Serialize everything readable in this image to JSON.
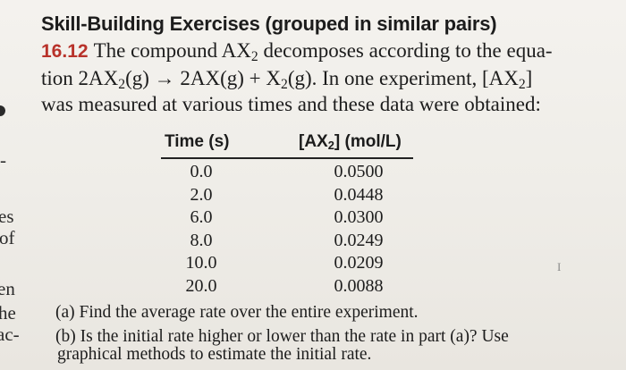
{
  "heading": "Skill-Building Exercises (grouped in similar pairs)",
  "problem": {
    "number": "16.12",
    "line1_a": "The compound AX",
    "line1_sub": "2",
    "line1_b": " decomposes according to the equa-",
    "line2_a": "tion 2AX",
    "line2_sub1": "2",
    "line2_b": "(g) → 2AX(g) + X",
    "line2_sub2": "2",
    "line2_c": "(g). In one experiment, [AX",
    "line2_sub3": "2",
    "line2_d": "]",
    "line3": "was measured at various times and these data were obtained:"
  },
  "table": {
    "col_time": "Time (s)",
    "col_conc_a": "[AX",
    "col_conc_sub": "2",
    "col_conc_b": "] (mol/L)",
    "rows": [
      {
        "time": "0.0",
        "conc": "0.0500"
      },
      {
        "time": "2.0",
        "conc": "0.0448"
      },
      {
        "time": "6.0",
        "conc": "0.0300"
      },
      {
        "time": "8.0",
        "conc": "0.0249"
      },
      {
        "time": "10.0",
        "conc": "0.0209"
      },
      {
        "time": "20.0",
        "conc": "0.0088"
      }
    ]
  },
  "questions": {
    "a": "(a) Find the average rate over the entire experiment.",
    "b_line1": "(b) Is the initial rate higher or lower than the rate in part (a)? Use",
    "b_line2": "graphical methods to estimate the initial rate."
  },
  "edge_fragments": [
    "-",
    "es",
    "of",
    "en",
    "he",
    "ac-"
  ],
  "cursor_glyph": "I"
}
